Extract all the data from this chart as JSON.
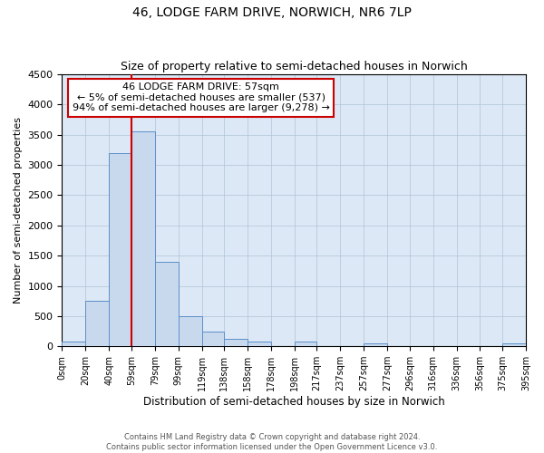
{
  "title": "46, LODGE FARM DRIVE, NORWICH, NR6 7LP",
  "subtitle": "Size of property relative to semi-detached houses in Norwich",
  "xlabel": "Distribution of semi-detached houses by size in Norwich",
  "ylabel": "Number of semi-detached properties",
  "bar_color": "#c9d9ed",
  "bar_edge_color": "#5b8fc9",
  "background_color": "#ffffff",
  "plot_bg_color": "#dce8f5",
  "grid_color": "#b0c4d8",
  "annotation_box_color": "#ffffff",
  "annotation_box_edge_color": "#cc0000",
  "property_line_color": "#cc0000",
  "annotation_title": "46 LODGE FARM DRIVE: 57sqm",
  "annotation_line1": "← 5% of semi-detached houses are smaller (537)",
  "annotation_line2": "94% of semi-detached houses are larger (9,278) →",
  "bin_edges": [
    0,
    20,
    40,
    59,
    79,
    99,
    119,
    138,
    158,
    178,
    198,
    217,
    237,
    257,
    277,
    296,
    316,
    336,
    356,
    375,
    395
  ],
  "bin_counts": [
    75,
    750,
    3200,
    3550,
    1400,
    500,
    240,
    130,
    75,
    0,
    75,
    0,
    0,
    50,
    0,
    0,
    0,
    0,
    0,
    50
  ],
  "property_line_x": 59,
  "ylim": [
    0,
    4500
  ],
  "yticks": [
    0,
    500,
    1000,
    1500,
    2000,
    2500,
    3000,
    3500,
    4000,
    4500
  ],
  "footer_line1": "Contains HM Land Registry data © Crown copyright and database right 2024.",
  "footer_line2": "Contains public sector information licensed under the Open Government Licence v3.0."
}
